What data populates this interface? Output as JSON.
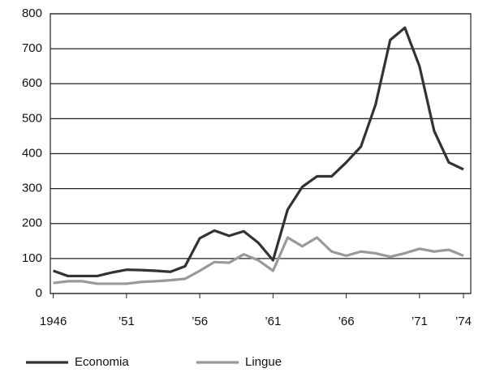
{
  "chart_data": {
    "type": "line",
    "x": [
      1946,
      1947,
      1948,
      1949,
      1950,
      1951,
      1952,
      1953,
      1954,
      1955,
      1956,
      1957,
      1958,
      1959,
      1960,
      1961,
      1962,
      1963,
      1964,
      1965,
      1966,
      1967,
      1968,
      1969,
      1970,
      1971,
      1972,
      1973,
      1974
    ],
    "series": [
      {
        "name": "Economia",
        "color": "#333333",
        "values": [
          65,
          50,
          50,
          50,
          60,
          68,
          67,
          65,
          62,
          78,
          158,
          180,
          165,
          178,
          145,
          95,
          240,
          305,
          335,
          335,
          375,
          420,
          540,
          725,
          760,
          650,
          465,
          375,
          355
        ]
      },
      {
        "name": "Lingue",
        "color": "#999999",
        "values": [
          30,
          35,
          35,
          28,
          28,
          28,
          33,
          35,
          38,
          42,
          65,
          90,
          88,
          112,
          95,
          65,
          160,
          135,
          160,
          120,
          108,
          120,
          115,
          105,
          115,
          128,
          120,
          125,
          108
        ]
      }
    ],
    "xlim": [
      1945.8,
      1974.5
    ],
    "xticks": [
      {
        "value": 1946,
        "label": "1946"
      },
      {
        "value": 1951,
        "label": "’51"
      },
      {
        "value": 1956,
        "label": "’56"
      },
      {
        "value": 1961,
        "label": "’61"
      },
      {
        "value": 1966,
        "label": "’66"
      },
      {
        "value": 1971,
        "label": "’71"
      },
      {
        "value": 1974,
        "label": "’74"
      }
    ],
    "ylim": [
      0,
      800
    ],
    "yticks": [
      0,
      100,
      200,
      300,
      400,
      500,
      600,
      700,
      800
    ],
    "grid": true,
    "legend": "bottom"
  }
}
